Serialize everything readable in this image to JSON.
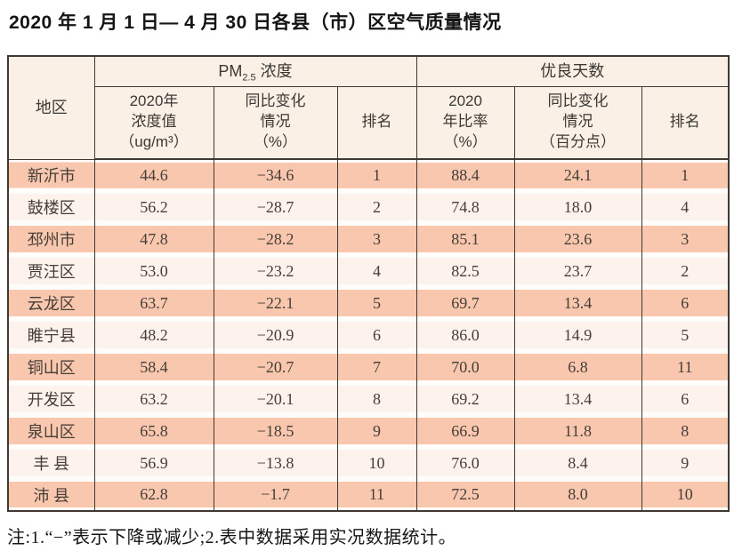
{
  "title": "2020 年 1 月 1 日— 4 月 30 日各县（市）区空气质量情况",
  "table": {
    "region_header": "地区",
    "group_headers": {
      "pm_prefix": "PM",
      "pm_sub": "2.5",
      "pm_suffix": " 浓度",
      "good_days": "优良天数"
    },
    "sub_headers": {
      "pm_value": "2020年\n浓度值\n（ug/m³）",
      "pm_change": "同比变化\n情况\n（%）",
      "pm_rank": "排名",
      "good_ratio": "2020\n年比率\n（%）",
      "good_change": "同比变化\n情况\n（百分点）",
      "good_rank": "排名"
    },
    "rows": [
      {
        "region": "新沂市",
        "pm_value": "44.6",
        "pm_change": "−34.6",
        "pm_rank": "1",
        "good_ratio": "88.4",
        "good_change": "24.1",
        "good_rank": "1"
      },
      {
        "region": "鼓楼区",
        "pm_value": "56.2",
        "pm_change": "−28.7",
        "pm_rank": "2",
        "good_ratio": "74.8",
        "good_change": "18.0",
        "good_rank": "4"
      },
      {
        "region": "邳州市",
        "pm_value": "47.8",
        "pm_change": "−28.2",
        "pm_rank": "3",
        "good_ratio": "85.1",
        "good_change": "23.6",
        "good_rank": "3"
      },
      {
        "region": "贾汪区",
        "pm_value": "53.0",
        "pm_change": "−23.2",
        "pm_rank": "4",
        "good_ratio": "82.5",
        "good_change": "23.7",
        "good_rank": "2"
      },
      {
        "region": "云龙区",
        "pm_value": "63.7",
        "pm_change": "−22.1",
        "pm_rank": "5",
        "good_ratio": "69.7",
        "good_change": "13.4",
        "good_rank": "6"
      },
      {
        "region": "睢宁县",
        "pm_value": "48.2",
        "pm_change": "−20.9",
        "pm_rank": "6",
        "good_ratio": "86.0",
        "good_change": "14.9",
        "good_rank": "5"
      },
      {
        "region": "铜山区",
        "pm_value": "58.4",
        "pm_change": "−20.7",
        "pm_rank": "7",
        "good_ratio": "70.0",
        "good_change": "6.8",
        "good_rank": "11"
      },
      {
        "region": "开发区",
        "pm_value": "63.2",
        "pm_change": "−20.1",
        "pm_rank": "8",
        "good_ratio": "69.2",
        "good_change": "13.4",
        "good_rank": "6"
      },
      {
        "region": "泉山区",
        "pm_value": "65.8",
        "pm_change": "−18.5",
        "pm_rank": "9",
        "good_ratio": "66.9",
        "good_change": "11.8",
        "good_rank": "8"
      },
      {
        "region": "丰 县",
        "pm_value": "56.9",
        "pm_change": "−13.8",
        "pm_rank": "10",
        "good_ratio": "76.0",
        "good_change": "8.4",
        "good_rank": "9"
      },
      {
        "region": "沛 县",
        "pm_value": "62.8",
        "pm_change": "−1.7",
        "pm_rank": "11",
        "good_ratio": "72.5",
        "good_change": "8.0",
        "good_rank": "10"
      }
    ]
  },
  "footnote": "注:1.“−”表示下降或减少;2.表中数据采用实况数据统计。",
  "colors": {
    "band_odd": "#f8c7ae",
    "band_even": "#fdf2ec",
    "header_bg": "#fbf0e5",
    "border": "#3f3833"
  },
  "chart_data": {
    "type": "table",
    "title": "2020年1月1日—4月30日各县（市）区空气质量情况",
    "column_groups": [
      "PM2.5浓度",
      "优良天数"
    ],
    "columns": [
      "地区",
      "2020年浓度值（ug/m³）",
      "同比变化情况（%）",
      "排名",
      "2020年比率（%）",
      "同比变化情况（百分点）",
      "排名"
    ],
    "rows": [
      [
        "新沂市",
        44.6,
        -34.6,
        1,
        88.4,
        24.1,
        1
      ],
      [
        "鼓楼区",
        56.2,
        -28.7,
        2,
        74.8,
        18.0,
        4
      ],
      [
        "邳州市",
        47.8,
        -28.2,
        3,
        85.1,
        23.6,
        3
      ],
      [
        "贾汪区",
        53.0,
        -23.2,
        4,
        82.5,
        23.7,
        2
      ],
      [
        "云龙区",
        63.7,
        -22.1,
        5,
        69.7,
        13.4,
        6
      ],
      [
        "睢宁县",
        48.2,
        -20.9,
        6,
        86.0,
        14.9,
        5
      ],
      [
        "铜山区",
        58.4,
        -20.7,
        7,
        70.0,
        6.8,
        11
      ],
      [
        "开发区",
        63.2,
        -20.1,
        8,
        69.2,
        13.4,
        6
      ],
      [
        "泉山区",
        65.8,
        -18.5,
        9,
        66.9,
        11.8,
        8
      ],
      [
        "丰县",
        56.9,
        -13.8,
        10,
        76.0,
        8.4,
        9
      ],
      [
        "沛县",
        62.8,
        -1.7,
        11,
        72.5,
        8.0,
        10
      ]
    ],
    "footnote": "注:1.“−”表示下降或减少;2.表中数据采用实况数据统计。"
  }
}
